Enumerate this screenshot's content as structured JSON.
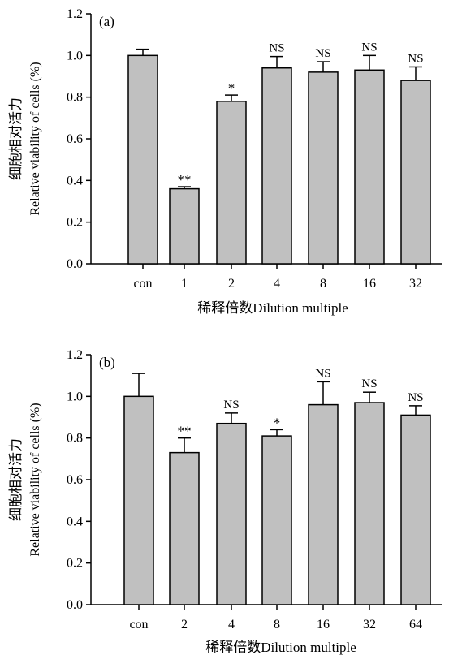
{
  "chart_data": [
    {
      "type": "bar",
      "panel_label": "(a)",
      "categories": [
        "con",
        "1",
        "2",
        "4",
        "8",
        "16",
        "32"
      ],
      "values": [
        1.0,
        0.36,
        0.78,
        0.94,
        0.92,
        0.93,
        0.88
      ],
      "errors": [
        0.03,
        0.01,
        0.03,
        0.055,
        0.05,
        0.07,
        0.065
      ],
      "significance": [
        "",
        "**",
        "*",
        "NS",
        "NS",
        "NS",
        "NS"
      ],
      "ylabel_cn": "细胞相对活力",
      "ylabel_en": "Relative viability of cells (%)",
      "xlabel": "稀释倍数Dilution multiple",
      "ylim": [
        0,
        1.2
      ],
      "yticks": [
        "0.0",
        "0.2",
        "0.4",
        "0.6",
        "0.8",
        "1.0",
        "1.2"
      ],
      "bar_color": "#c0c0c0",
      "grid": false
    },
    {
      "type": "bar",
      "panel_label": "(b)",
      "categories": [
        "con",
        "2",
        "4",
        "8",
        "16",
        "32",
        "64"
      ],
      "values": [
        1.0,
        0.73,
        0.87,
        0.81,
        0.96,
        0.97,
        0.91
      ],
      "errors": [
        0.11,
        0.07,
        0.05,
        0.03,
        0.11,
        0.05,
        0.045
      ],
      "significance": [
        "",
        "**",
        "NS",
        "*",
        "NS",
        "NS",
        "NS"
      ],
      "ylabel_cn": "细胞相对活力",
      "ylabel_en": "Relative viability of cells (%)",
      "xlabel": "稀释倍数Dilution multiple",
      "ylim": [
        0,
        1.2
      ],
      "yticks": [
        "0.0",
        "0.2",
        "0.4",
        "0.6",
        "0.8",
        "1.0",
        "1.2"
      ],
      "bar_color": "#c0c0c0",
      "grid": false
    }
  ]
}
